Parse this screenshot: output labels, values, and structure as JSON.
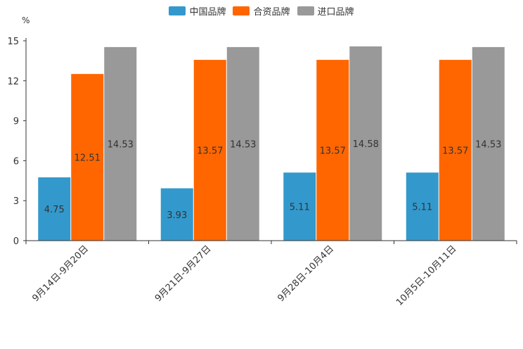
{
  "chart_data": {
    "type": "bar",
    "title": "",
    "xlabel": "",
    "ylabel": "%",
    "ylim": [
      0,
      15
    ],
    "yticks": [
      0,
      3,
      6,
      9,
      12,
      15
    ],
    "categories": [
      "9月14日-9月20日",
      "9月21日-9月27日",
      "9月28日-10月4日",
      "10月5日-10月11日"
    ],
    "series": [
      {
        "name": "中国品牌",
        "color": "#3399CC",
        "values": [
          4.75,
          3.93,
          5.11,
          5.11
        ],
        "labels": [
          "4.75",
          "3.93",
          "5.11",
          "5.11"
        ]
      },
      {
        "name": "合资品牌",
        "color": "#FF6600",
        "values": [
          12.51,
          13.57,
          13.57,
          13.57
        ],
        "labels": [
          "12.51",
          "13.57",
          "13.57",
          "13.57"
        ]
      },
      {
        "name": "进口品牌",
        "color": "#999999",
        "values": [
          14.53,
          14.53,
          14.58,
          14.53
        ],
        "labels": [
          "14.53",
          "14.53",
          "14.58",
          "14.53"
        ]
      }
    ],
    "legend_position": "top-center",
    "grid": false
  }
}
